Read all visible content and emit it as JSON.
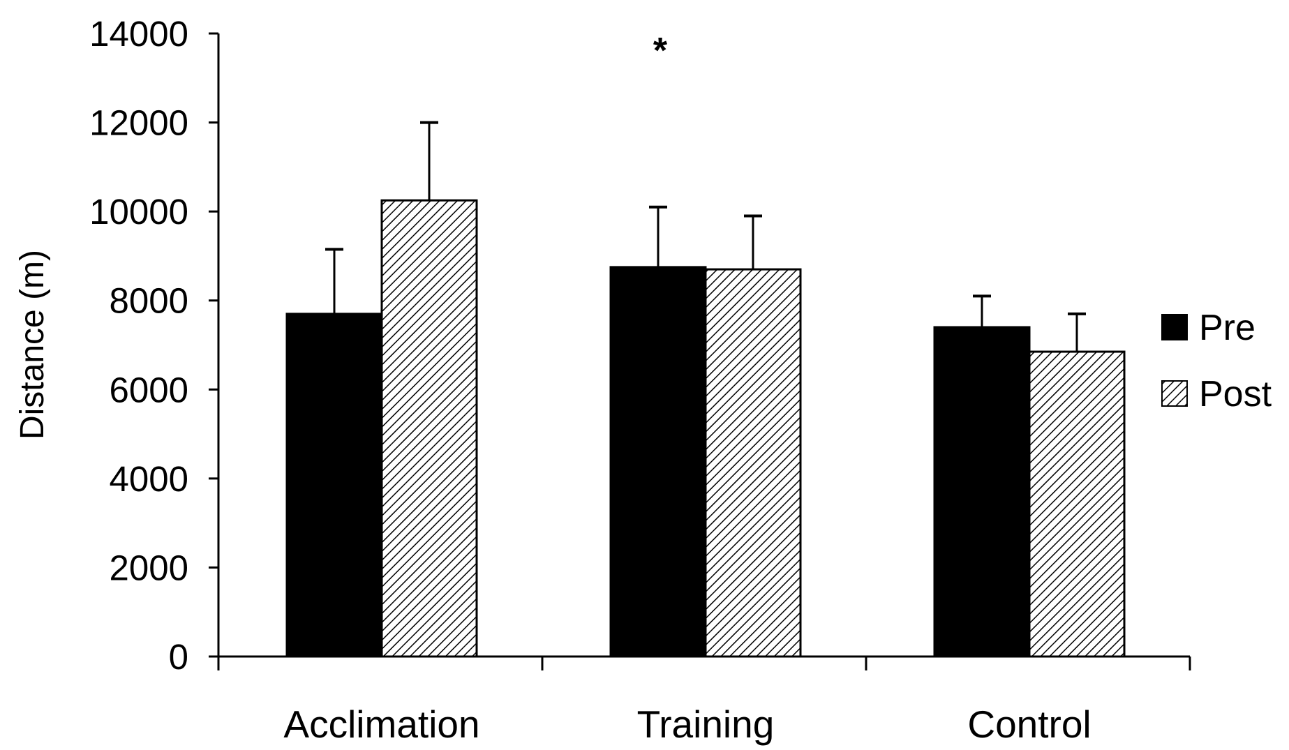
{
  "chart_data": {
    "type": "bar",
    "title": "",
    "xlabel": "",
    "ylabel": "Distance (m)",
    "ylim": [
      0,
      14000
    ],
    "yticks": [
      0,
      2000,
      4000,
      6000,
      8000,
      10000,
      12000,
      14000
    ],
    "ytick_labels": [
      "0",
      "2000",
      "4000",
      "6000",
      "8000",
      "10000",
      "12000",
      "14000"
    ],
    "categories": [
      "Acclimation",
      "Training",
      "Control"
    ],
    "series": [
      {
        "name": "Pre",
        "fill": "solid",
        "color": "#000000",
        "values": [
          7700,
          8750,
          7400
        ],
        "errors": [
          1450,
          1350,
          700
        ]
      },
      {
        "name": "Post",
        "fill": "hatched",
        "color": "#000000",
        "values": [
          10250,
          8700,
          6850
        ],
        "errors": [
          1750,
          1200,
          850
        ]
      }
    ],
    "annotations": [
      {
        "category": "Training",
        "text": "*"
      }
    ],
    "legend_position": "right",
    "grid": false,
    "error_bars": "upper"
  }
}
